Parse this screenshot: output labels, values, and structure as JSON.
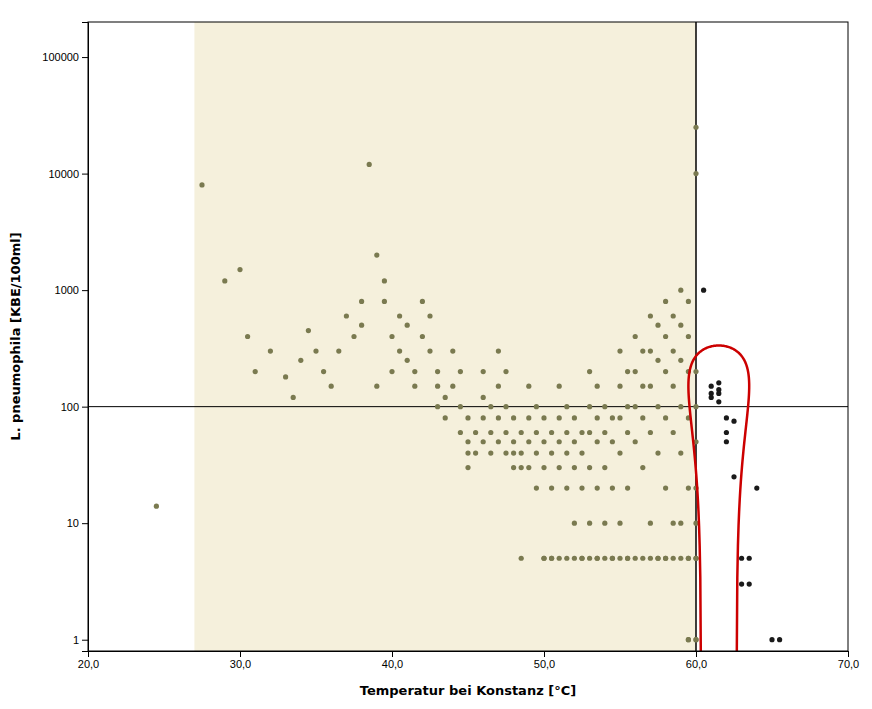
{
  "chart_data": {
    "type": "scatter",
    "title": "",
    "xlabel": "Temperatur bei Konstanz [°C]",
    "ylabel": "L. pneumophila [KBE/100ml]",
    "log": "y",
    "grid": false,
    "xlim": [
      20.0,
      70.0
    ],
    "ylim": [
      0.8,
      200000
    ],
    "xticks": [
      {
        "value": 20.0,
        "label": "20,0"
      },
      {
        "value": 30.0,
        "label": "30,0"
      },
      {
        "value": 40.0,
        "label": "40,0"
      },
      {
        "value": 50.0,
        "label": "50,0"
      },
      {
        "value": 60.0,
        "label": "60,0"
      },
      {
        "value": 70.0,
        "label": "70,0"
      }
    ],
    "yticks": [
      1,
      10,
      100,
      1000,
      10000,
      100000
    ],
    "background_color": "#ffffff",
    "shaded_region": {
      "x": [
        27.0,
        60.0
      ],
      "color": "#f5f0dc"
    },
    "reference_lines": [
      {
        "axis": "y",
        "value": 100,
        "color": "#000000"
      },
      {
        "axis": "x",
        "value": 60.0,
        "color": "#000000"
      }
    ],
    "ellipse": {
      "x": 61.5,
      "y": 150,
      "width": 4.0,
      "height": 369.5354313,
      "color": "#cc0000"
    },
    "series": [
      {
        "color": "#7a7a50",
        "x": [
          24.5,
          27.5,
          29.0,
          30.0,
          30.5,
          31.0,
          32.0,
          33.0,
          33.5,
          34.0,
          34.5,
          35.0,
          35.5,
          36.0,
          36.5,
          37.0,
          37.5,
          38.0,
          38.0,
          38.5,
          39.0,
          39.0,
          39.5,
          39.5,
          40.0,
          40.0,
          40.5,
          40.5,
          41.0,
          41.0,
          41.5,
          41.5,
          42.0,
          42.0,
          42.5,
          42.5,
          43.0,
          43.0,
          43.0,
          43.5,
          43.5,
          44.0,
          44.0,
          44.5,
          44.5,
          44.5,
          45.0,
          45.0,
          45.0,
          45.0,
          45.5,
          45.5,
          46.0,
          46.0,
          46.0,
          46.0,
          46.5,
          46.5,
          46.5,
          47.0,
          47.0,
          47.0,
          47.0,
          47.5,
          47.5,
          47.5,
          47.5,
          48.0,
          48.0,
          48.0,
          48.0,
          48.5,
          48.5,
          48.5,
          48.5,
          49.0,
          49.0,
          49.0,
          49.0,
          49.5,
          49.5,
          49.5,
          49.5,
          50.0,
          50.0,
          50.0,
          50.0,
          50.0,
          50.5,
          50.5,
          50.5,
          50.5,
          50.5,
          51.0,
          51.0,
          51.0,
          51.0,
          51.0,
          51.5,
          51.5,
          51.5,
          51.5,
          51.5,
          52.0,
          52.0,
          52.0,
          52.0,
          52.0,
          52.5,
          52.5,
          52.5,
          52.5,
          52.5,
          53.0,
          53.0,
          53.0,
          53.0,
          53.0,
          53.0,
          53.5,
          53.5,
          53.5,
          53.5,
          53.5,
          53.5,
          54.0,
          54.0,
          54.0,
          54.0,
          54.0,
          54.5,
          54.5,
          54.5,
          54.5,
          54.5,
          55.0,
          55.0,
          55.0,
          55.0,
          55.0,
          55.0,
          55.5,
          55.5,
          55.5,
          55.5,
          55.5,
          55.5,
          56.0,
          56.0,
          56.0,
          56.0,
          56.0,
          56.5,
          56.5,
          56.5,
          56.5,
          56.5,
          57.0,
          57.0,
          57.0,
          57.0,
          57.0,
          57.0,
          57.5,
          57.5,
          57.5,
          57.5,
          57.5,
          57.5,
          58.0,
          58.0,
          58.0,
          58.0,
          58.0,
          58.0,
          58.0,
          58.5,
          58.5,
          58.5,
          58.5,
          58.5,
          58.5,
          59.0,
          59.0,
          59.0,
          59.0,
          59.0,
          59.0,
          59.0,
          59.5,
          59.5,
          59.5,
          59.5,
          59.5,
          59.5,
          59.5,
          59.5,
          59.5,
          60.0,
          60.0,
          60.0,
          60.0,
          60.0,
          60.0,
          60.0,
          60.0,
          60.0,
          60.0,
          60.0
        ],
        "values": [
          14,
          8000,
          1200,
          1500,
          400,
          200,
          300,
          180,
          120,
          250,
          450,
          300,
          200,
          150,
          300,
          600,
          400,
          800,
          500,
          12000,
          2000,
          150,
          1200,
          800,
          400,
          200,
          600,
          300,
          500,
          250,
          200,
          150,
          800,
          400,
          600,
          300,
          200,
          150,
          100,
          120,
          80,
          300,
          150,
          200,
          100,
          60,
          80,
          50,
          40,
          30,
          60,
          40,
          200,
          120,
          80,
          50,
          100,
          60,
          40,
          300,
          150,
          80,
          50,
          200,
          100,
          60,
          40,
          80,
          50,
          40,
          30,
          60,
          40,
          30,
          5,
          150,
          80,
          50,
          30,
          100,
          60,
          40,
          20,
          80,
          50,
          30,
          5,
          5,
          60,
          40,
          20,
          5,
          5,
          150,
          80,
          50,
          30,
          5,
          100,
          60,
          40,
          20,
          5,
          80,
          50,
          30,
          10,
          5,
          60,
          40,
          20,
          5,
          5,
          200,
          100,
          60,
          30,
          10,
          5,
          150,
          80,
          50,
          20,
          5,
          5,
          100,
          60,
          30,
          10,
          5,
          80,
          50,
          20,
          5,
          5,
          300,
          150,
          80,
          40,
          10,
          5,
          200,
          100,
          60,
          20,
          5,
          5,
          400,
          200,
          100,
          50,
          5,
          300,
          150,
          80,
          30,
          5,
          600,
          300,
          150,
          60,
          10,
          5,
          500,
          250,
          100,
          40,
          5,
          5,
          800,
          400,
          200,
          80,
          20,
          5,
          5,
          600,
          300,
          150,
          60,
          10,
          5,
          1000,
          500,
          250,
          100,
          40,
          10,
          5,
          800,
          400,
          200,
          80,
          20,
          5,
          5,
          1,
          1,
          25000,
          10000,
          200,
          100,
          50,
          20,
          10,
          5,
          5,
          1,
          1
        ]
      },
      {
        "color": "#1a1a1a",
        "x": [
          60.5,
          61.0,
          61.0,
          61.0,
          61.5,
          61.5,
          61.5,
          61.5,
          62.0,
          62.0,
          62.0,
          62.5,
          62.5,
          63.0,
          63.0,
          63.5,
          63.5,
          64.0,
          65.0,
          65.5
        ],
        "values": [
          1000,
          150,
          130,
          120,
          160,
          140,
          130,
          110,
          80,
          60,
          50,
          75,
          25,
          5,
          3,
          5,
          3,
          20,
          1,
          1
        ]
      }
    ]
  }
}
